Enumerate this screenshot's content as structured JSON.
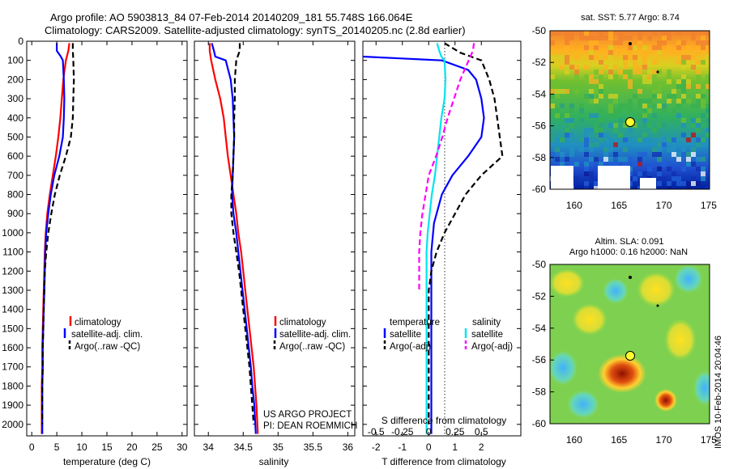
{
  "titles": {
    "line1": "Argo profile: AO 5903813_84 07-Feb-2014 20140209_181 55.748S 166.064E",
    "line2": "Climatology: CARS2009. Satellite-adjusted climatology: synTS_20140205.nc (2.8d earlier)"
  },
  "colors": {
    "climatology": "#ff0000",
    "satellite": "#0000ff",
    "argo": "#000000",
    "salinity_satellite": "#00e5ee",
    "salinity_argo": "#ff00ff"
  },
  "chart_data": [
    {
      "type": "line",
      "panel": "temperature",
      "xlabel": "temperature (deg C)",
      "ylabel": "",
      "xlim": [
        -1,
        31
      ],
      "ylim": [
        2060,
        0
      ],
      "y_reversed": true,
      "xticks": [
        0,
        5,
        10,
        15,
        20,
        25,
        30
      ],
      "yticks": [
        0,
        100,
        200,
        300,
        400,
        500,
        600,
        700,
        800,
        900,
        1000,
        1100,
        1200,
        1300,
        1400,
        1500,
        1600,
        1700,
        1800,
        1900,
        2000
      ],
      "legend": [
        "climatology",
        "satellite-adj. clim.",
        "Argo(..raw -QC)"
      ],
      "series": [
        {
          "name": "climatology",
          "color": "#ff0000",
          "dash": false,
          "points": [
            [
              7.5,
              10
            ],
            [
              7.3,
              50
            ],
            [
              6.8,
              100
            ],
            [
              6.3,
              200
            ],
            [
              6.0,
              300
            ],
            [
              5.7,
              400
            ],
            [
              5.3,
              500
            ],
            [
              4.8,
              600
            ],
            [
              4.2,
              700
            ],
            [
              3.6,
              800
            ],
            [
              3.1,
              900
            ],
            [
              2.8,
              1000
            ],
            [
              2.6,
              1100
            ],
            [
              2.5,
              1200
            ],
            [
              2.4,
              1300
            ],
            [
              2.3,
              1400
            ],
            [
              2.2,
              1500
            ],
            [
              2.1,
              1600
            ],
            [
              2.1,
              1700
            ],
            [
              2.0,
              1800
            ],
            [
              2.0,
              1900
            ],
            [
              2.0,
              2050
            ]
          ]
        },
        {
          "name": "satellite-adj. clim.",
          "color": "#0000ff",
          "dash": false,
          "points": [
            [
              5.0,
              10
            ],
            [
              5.0,
              50
            ],
            [
              5.8,
              80
            ],
            [
              6.2,
              100
            ],
            [
              6.4,
              200
            ],
            [
              6.5,
              300
            ],
            [
              6.4,
              400
            ],
            [
              6.2,
              500
            ],
            [
              5.5,
              600
            ],
            [
              4.5,
              700
            ],
            [
              3.8,
              800
            ],
            [
              3.3,
              900
            ],
            [
              2.9,
              1000
            ],
            [
              2.7,
              1100
            ],
            [
              2.6,
              1200
            ],
            [
              2.5,
              1300
            ],
            [
              2.4,
              1400
            ],
            [
              2.3,
              1500
            ],
            [
              2.2,
              1600
            ],
            [
              2.2,
              1700
            ],
            [
              2.1,
              1800
            ],
            [
              2.1,
              1900
            ],
            [
              2.1,
              2050
            ]
          ]
        },
        {
          "name": "Argo(..raw -QC)",
          "color": "#000000",
          "dash": true,
          "points": [
            [
              8.2,
              10
            ],
            [
              8.2,
              50
            ],
            [
              8.3,
              100
            ],
            [
              8.4,
              200
            ],
            [
              8.3,
              300
            ],
            [
              8.2,
              400
            ],
            [
              7.8,
              500
            ],
            [
              6.8,
              600
            ],
            [
              5.6,
              700
            ],
            [
              4.6,
              800
            ],
            [
              3.9,
              900
            ],
            [
              3.3,
              1000
            ],
            [
              2.9,
              1100
            ],
            [
              2.6,
              1200
            ],
            [
              2.5,
              1300
            ],
            [
              2.4,
              1400
            ],
            [
              2.3,
              1500
            ],
            [
              2.2,
              1600
            ],
            [
              2.2,
              1700
            ],
            [
              2.1,
              1800
            ],
            [
              2.1,
              1900
            ],
            [
              2.1,
              2000
            ]
          ]
        }
      ]
    },
    {
      "type": "line",
      "panel": "salinity",
      "xlabel": "salinity",
      "ylabel": "",
      "xlim": [
        33.8,
        36.1
      ],
      "ylim": [
        2060,
        0
      ],
      "y_reversed": true,
      "xticks": [
        34,
        34.5,
        35,
        35.5,
        36
      ],
      "legend": [
        "climatology",
        "satellite-adj. clim.",
        "Argo(..raw -QC)"
      ],
      "annotations": [
        "US ARGO PROJECT",
        "PI: DEAN ROEMMICH"
      ],
      "series": [
        {
          "name": "climatology",
          "color": "#ff0000",
          "dash": false,
          "points": [
            [
              34.02,
              10
            ],
            [
              34.02,
              50
            ],
            [
              34.04,
              100
            ],
            [
              34.1,
              200
            ],
            [
              34.17,
              300
            ],
            [
              34.22,
              400
            ],
            [
              34.25,
              500
            ],
            [
              34.28,
              600
            ],
            [
              34.32,
              700
            ],
            [
              34.36,
              800
            ],
            [
              34.4,
              900
            ],
            [
              34.43,
              1000
            ],
            [
              34.47,
              1100
            ],
            [
              34.5,
              1200
            ],
            [
              34.53,
              1300
            ],
            [
              34.56,
              1400
            ],
            [
              34.59,
              1500
            ],
            [
              34.62,
              1600
            ],
            [
              34.65,
              1700
            ],
            [
              34.67,
              1800
            ],
            [
              34.69,
              1900
            ],
            [
              34.71,
              2050
            ]
          ]
        },
        {
          "name": "satellite-adj. clim.",
          "color": "#0000ff",
          "dash": false,
          "points": [
            [
              34.05,
              10
            ],
            [
              34.08,
              50
            ],
            [
              34.1,
              80
            ],
            [
              34.25,
              100
            ],
            [
              34.32,
              200
            ],
            [
              34.35,
              300
            ],
            [
              34.36,
              400
            ],
            [
              34.37,
              500
            ],
            [
              34.36,
              600
            ],
            [
              34.35,
              700
            ],
            [
              34.34,
              800
            ],
            [
              34.36,
              900
            ],
            [
              34.4,
              1000
            ],
            [
              34.43,
              1100
            ],
            [
              34.46,
              1200
            ],
            [
              34.49,
              1300
            ],
            [
              34.52,
              1400
            ],
            [
              34.55,
              1500
            ],
            [
              34.58,
              1600
            ],
            [
              34.61,
              1700
            ],
            [
              34.63,
              1800
            ],
            [
              34.66,
              1900
            ],
            [
              34.68,
              2050
            ]
          ]
        },
        {
          "name": "Argo(..raw -QC)",
          "color": "#000000",
          "dash": true,
          "points": [
            [
              34.45,
              10
            ],
            [
              34.45,
              50
            ],
            [
              34.4,
              100
            ],
            [
              34.38,
              200
            ],
            [
              34.38,
              300
            ],
            [
              34.37,
              400
            ],
            [
              34.37,
              500
            ],
            [
              34.36,
              600
            ],
            [
              34.35,
              700
            ],
            [
              34.33,
              800
            ],
            [
              34.33,
              900
            ],
            [
              34.36,
              1000
            ],
            [
              34.4,
              1100
            ],
            [
              34.44,
              1200
            ],
            [
              34.47,
              1300
            ],
            [
              34.5,
              1400
            ],
            [
              34.53,
              1500
            ],
            [
              34.56,
              1600
            ],
            [
              34.59,
              1700
            ],
            [
              34.61,
              1800
            ],
            [
              34.63,
              1900
            ],
            [
              34.65,
              2000
            ]
          ]
        }
      ]
    },
    {
      "type": "line",
      "panel": "difference",
      "xlabel": "T difference from climatology",
      "x2label": "S difference from climatology",
      "xlim": [
        -2.5,
        3.5
      ],
      "x2lim": [
        -0.625,
        0.875
      ],
      "ylim": [
        2060,
        0
      ],
      "y_reversed": true,
      "xticks": [
        -2,
        -1,
        0,
        1,
        2
      ],
      "x2ticks": [
        -0.5,
        -0.25,
        0,
        0.25,
        0.5
      ],
      "legend_groups": [
        {
          "title": "temperature",
          "items": [
            "satellite",
            "Argo(-adj)"
          ]
        },
        {
          "title": "salinity",
          "items": [
            "satellite",
            "Argo(-adj)"
          ]
        }
      ],
      "series": [
        {
          "name": "temperature satellite",
          "axis": "T",
          "color": "#0000ff",
          "dash": false,
          "points": [
            [
              -2.5,
              80
            ],
            [
              0.5,
              100
            ],
            [
              1.5,
              150
            ],
            [
              1.8,
              200
            ],
            [
              2.0,
              300
            ],
            [
              2.1,
              400
            ],
            [
              2.0,
              500
            ],
            [
              1.5,
              600
            ],
            [
              0.9,
              700
            ],
            [
              0.5,
              800
            ],
            [
              0.2,
              950
            ],
            [
              0.1,
              1100
            ],
            [
              0.1,
              1300
            ],
            [
              0.1,
              1500
            ],
            [
              0.1,
              1700
            ],
            [
              0.1,
              1900
            ],
            [
              0.1,
              2050
            ]
          ]
        },
        {
          "name": "temperature Argo(-adj)",
          "axis": "T",
          "color": "#000000",
          "dash": true,
          "points": [
            [
              0.6,
              10
            ],
            [
              1.2,
              60
            ],
            [
              2.0,
              100
            ],
            [
              2.3,
              200
            ],
            [
              2.5,
              300
            ],
            [
              2.6,
              400
            ],
            [
              2.7,
              500
            ],
            [
              2.8,
              600
            ],
            [
              2.0,
              700
            ],
            [
              1.4,
              800
            ],
            [
              1.0,
              900
            ],
            [
              0.6,
              1000
            ],
            [
              0.3,
              1100
            ],
            [
              0.1,
              1200
            ],
            [
              0.0,
              1300
            ],
            [
              0.0,
              1500
            ],
            [
              0.0,
              1700
            ],
            [
              0.0,
              1900
            ],
            [
              0.0,
              2000
            ]
          ]
        },
        {
          "name": "salinity satellite",
          "axis": "S",
          "color": "#00e5ee",
          "dash": false,
          "points": [
            [
              0.08,
              10
            ],
            [
              0.1,
              50
            ],
            [
              0.12,
              80
            ],
            [
              0.15,
              100
            ],
            [
              0.16,
              200
            ],
            [
              0.15,
              300
            ],
            [
              0.12,
              400
            ],
            [
              0.1,
              500
            ],
            [
              0.08,
              600
            ],
            [
              0.06,
              700
            ],
            [
              0.03,
              800
            ],
            [
              0.01,
              900
            ],
            [
              -0.01,
              1000
            ],
            [
              -0.02,
              1100
            ],
            [
              -0.02,
              1200
            ],
            [
              -0.02,
              1300
            ],
            [
              -0.02,
              1500
            ],
            [
              -0.02,
              1700
            ],
            [
              -0.02,
              1900
            ],
            [
              -0.02,
              2050
            ]
          ]
        },
        {
          "name": "salinity Argo(-adj)",
          "axis": "S",
          "color": "#ff00ff",
          "dash": true,
          "points": [
            [
              0.43,
              10
            ],
            [
              0.42,
              50
            ],
            [
              0.38,
              100
            ],
            [
              0.3,
              200
            ],
            [
              0.24,
              300
            ],
            [
              0.18,
              400
            ],
            [
              0.13,
              500
            ],
            [
              0.07,
              600
            ],
            [
              0.0,
              700
            ],
            [
              -0.03,
              800
            ],
            [
              -0.06,
              900
            ],
            [
              -0.08,
              1000
            ],
            [
              -0.09,
              1100
            ],
            [
              -0.09,
              1200
            ],
            [
              -0.09,
              1300
            ]
          ]
        }
      ]
    }
  ],
  "maps": {
    "sst": {
      "title": "sat. SST: 5.77  Argo: 8.74",
      "yticks": [
        "-50",
        "-52",
        "-54",
        "-56",
        "-58",
        "-60"
      ],
      "xticks": [
        "160",
        "165",
        "170",
        "175"
      ],
      "float_lon": 166.064,
      "float_lat": -55.748
    },
    "sla": {
      "title1": "Altim. SLA: 0.091",
      "title2": "Argo h1000: 0.16  h2000: NaN",
      "yticks": [
        "-50",
        "-52",
        "-54",
        "-56",
        "-58",
        "-60"
      ],
      "xticks": [
        "160",
        "165",
        "170",
        "175"
      ],
      "float_lon": 166.064,
      "float_lat": -55.748
    }
  },
  "footer": "IMOS 10-Feb-2014 20:04:46"
}
